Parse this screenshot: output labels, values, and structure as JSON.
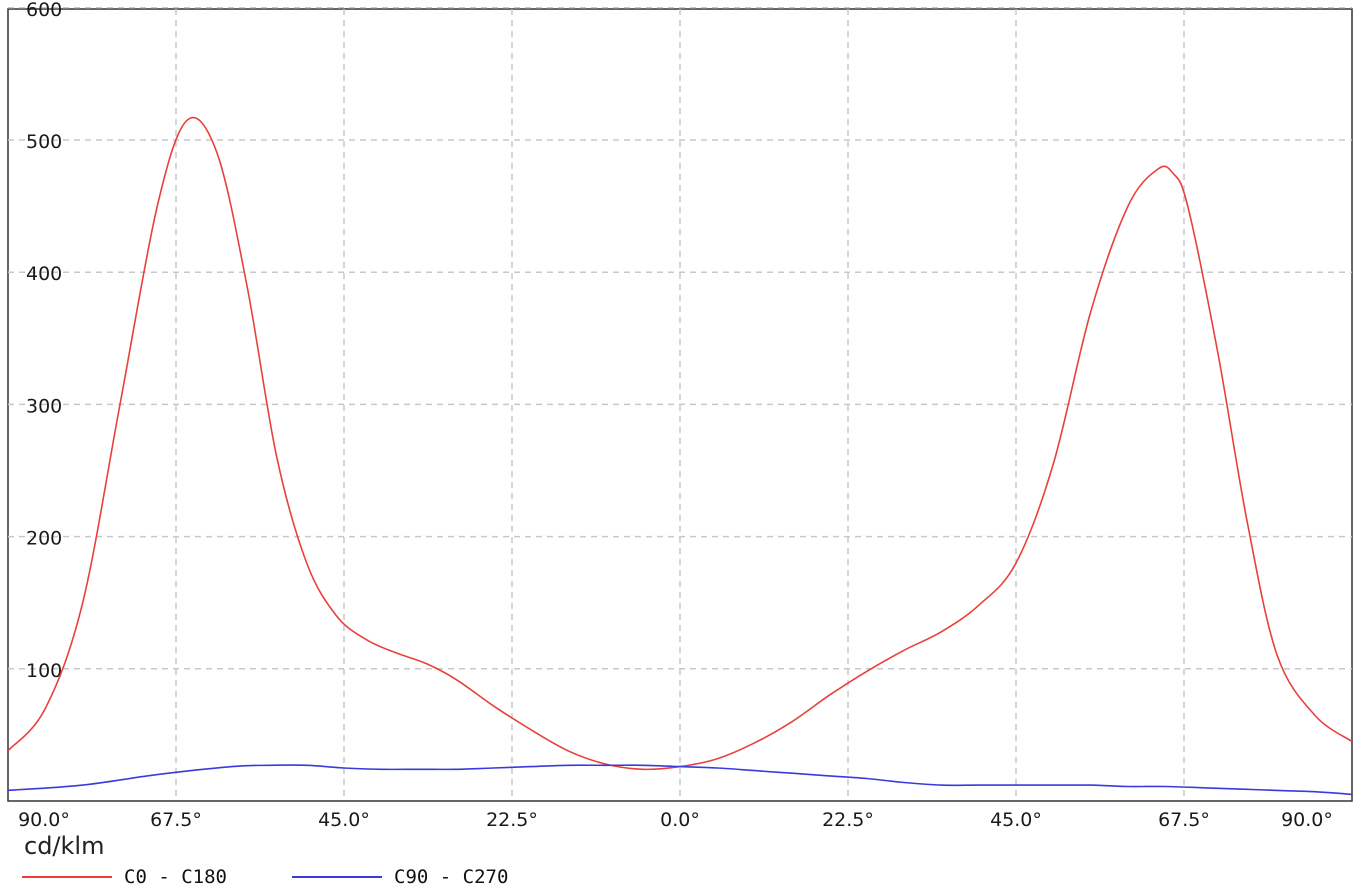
{
  "chart_data": {
    "type": "line",
    "unit_label": "cd/klm",
    "x_tick_labels": [
      "90.0°",
      "67.5°",
      "45.0°",
      "22.5°",
      "0.0°",
      "22.5°",
      "45.0°",
      "67.5°",
      "90.0°"
    ],
    "x_range": [
      -90,
      90
    ],
    "ylim": [
      0,
      600
    ],
    "y_ticks": [
      100,
      200,
      300,
      400,
      500,
      600
    ],
    "grid": true,
    "legend_position": "bottom-left",
    "series": [
      {
        "name": "C0 - C180",
        "color": "#e8413a",
        "x": [
          -90,
          -85,
          -80,
          -75,
          -70,
          -66,
          -62,
          -58,
          -54,
          -50,
          -46,
          -42,
          -38,
          -34,
          -30,
          -25,
          -20,
          -15,
          -10,
          -5,
          0,
          5,
          10,
          15,
          20,
          25,
          30,
          35,
          40,
          45,
          50,
          55,
          60,
          64,
          66,
          68,
          72,
          76,
          80,
          85,
          90
        ],
        "y": [
          38,
          70,
          150,
          300,
          450,
          515,
          490,
          390,
          260,
          180,
          140,
          122,
          112,
          104,
          92,
          72,
          54,
          38,
          28,
          24,
          26,
          32,
          44,
          60,
          80,
          98,
          114,
          128,
          148,
          180,
          255,
          370,
          450,
          478,
          475,
          450,
          340,
          210,
          110,
          65,
          45
        ]
      },
      {
        "name": "C90 - C270",
        "color": "#3b3bdc",
        "x": [
          -90,
          -80,
          -70,
          -60,
          -55,
          -50,
          -45,
          -40,
          -35,
          -30,
          -25,
          -20,
          -15,
          -10,
          -5,
          0,
          5,
          10,
          15,
          20,
          25,
          30,
          35,
          40,
          45,
          50,
          55,
          60,
          65,
          70,
          75,
          80,
          85,
          90
        ],
        "y": [
          8,
          12,
          20,
          26,
          27,
          27,
          25,
          24,
          24,
          24,
          25,
          26,
          27,
          27,
          27,
          26,
          25,
          23,
          21,
          19,
          17,
          14,
          12,
          12,
          12,
          12,
          12,
          11,
          11,
          10,
          9,
          8,
          7,
          5
        ]
      }
    ]
  }
}
